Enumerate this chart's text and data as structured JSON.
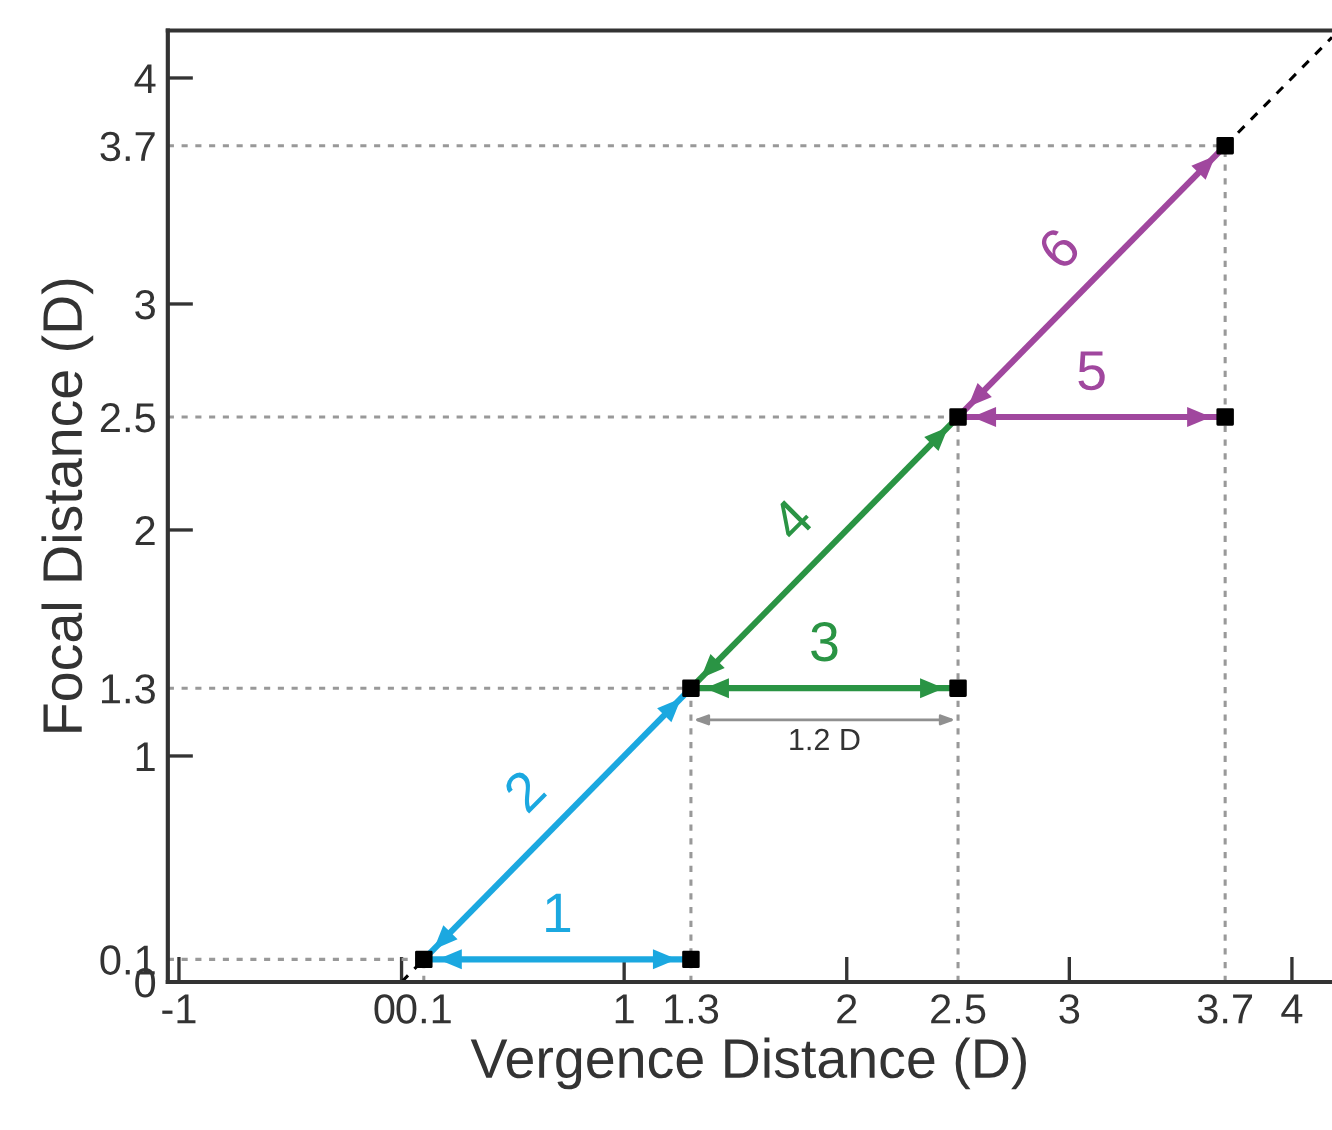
{
  "chart_data": {
    "type": "scatter",
    "xlabel": "Vergence Distance (D)",
    "ylabel": "Focal Distance (D)",
    "xlim": [
      -1.05,
      4.18
    ],
    "ylim": [
      0,
      4.21
    ],
    "xticks": [
      -1,
      0,
      0.1,
      1,
      1.3,
      2,
      2.5,
      3,
      3.7,
      4
    ],
    "yticks": [
      0,
      0.1,
      1,
      1.3,
      2,
      2.5,
      3,
      3.7,
      4
    ],
    "grid": false,
    "series": [
      {
        "type": "line",
        "color": "#999999",
        "line_style": "dotted",
        "marker": "none",
        "x": [
          0.1,
          0.1
        ],
        "values": [
          0,
          0.1
        ]
      },
      {
        "type": "line",
        "color": "#999999",
        "line_style": "dotted",
        "marker": "none",
        "x": [
          1.3,
          1.3
        ],
        "values": [
          0,
          1.3
        ]
      },
      {
        "type": "line",
        "color": "#999999",
        "line_style": "dotted",
        "marker": "none",
        "x": [
          2.5,
          2.5
        ],
        "values": [
          0,
          2.5
        ]
      },
      {
        "type": "line",
        "color": "#999999",
        "line_style": "dotted",
        "marker": "none",
        "x": [
          3.7,
          3.7
        ],
        "values": [
          0,
          3.7
        ]
      },
      {
        "type": "line",
        "color": "#999999",
        "line_style": "dotted",
        "marker": "none",
        "x": [
          -1.05,
          0.1
        ],
        "values": [
          0.1,
          0.1
        ]
      },
      {
        "type": "line",
        "color": "#999999",
        "line_style": "dotted",
        "marker": "none",
        "x": [
          -1.05,
          1.3
        ],
        "values": [
          1.3,
          1.3
        ]
      },
      {
        "type": "line",
        "color": "#999999",
        "line_style": "dotted",
        "marker": "none",
        "x": [
          -1.05,
          2.5
        ],
        "values": [
          2.5,
          2.5
        ]
      },
      {
        "type": "line",
        "color": "#999999",
        "line_style": "dotted",
        "marker": "none",
        "x": [
          -1.05,
          3.7
        ],
        "values": [
          3.7,
          3.7
        ]
      },
      {
        "type": "line",
        "color": "#000000",
        "line_style": "dashed",
        "marker": "none",
        "x": [
          0,
          0.1
        ],
        "values": [
          0,
          0.1
        ]
      },
      {
        "type": "line",
        "color": "#000000",
        "line_style": "dashed",
        "marker": "none",
        "x": [
          3.7,
          4.18
        ],
        "values": [
          3.7,
          4.18
        ]
      },
      {
        "color": "#000000",
        "marker": "square",
        "x": [
          0.1,
          1.3,
          1.3,
          2.5,
          2.5,
          3.7,
          3.7
        ],
        "values": [
          0.1,
          0.1,
          1.3,
          1.3,
          2.5,
          2.5,
          3.7
        ]
      },
      {
        "type": "line",
        "line_style": "solid",
        "color": "#1ba8e0",
        "x": [
          0.1,
          1.3
        ],
        "values": [
          0.1,
          0.1
        ]
      },
      {
        "type": "line",
        "line_style": "solid",
        "color": "#1ba8e0",
        "x": [
          0.1,
          1.3
        ],
        "values": [
          0.1,
          1.3
        ]
      },
      {
        "type": "line",
        "line_style": "solid",
        "color": "#2a9444",
        "x": [
          1.3,
          2.5
        ],
        "values": [
          1.3,
          1.3
        ]
      },
      {
        "type": "line",
        "line_style": "solid",
        "color": "#2a9444",
        "x": [
          1.3,
          2.5
        ],
        "values": [
          1.3,
          2.5
        ]
      },
      {
        "type": "line",
        "line_style": "solid",
        "color": "#a0479e",
        "x": [
          2.5,
          3.7
        ],
        "values": [
          2.5,
          2.5
        ]
      },
      {
        "type": "line",
        "line_style": "solid",
        "color": "#a0479e",
        "x": [
          2.5,
          3.7
        ],
        "values": [
          2.5,
          3.7
        ]
      }
    ],
    "annotations": [
      "1.2 D",
      {
        "text": "1",
        "x": 0.7,
        "y": 0.1
      },
      {
        "text": "2",
        "x": 0.7,
        "y": 0.7
      },
      {
        "text": "3",
        "x": 1.9,
        "y": 1.3
      },
      {
        "text": "4",
        "x": 1.9,
        "y": 1.9
      },
      {
        "text": "5",
        "x": 3.1,
        "y": 2.5
      },
      {
        "text": "6",
        "x": 3.1,
        "y": 3.1
      }
    ]
  }
}
